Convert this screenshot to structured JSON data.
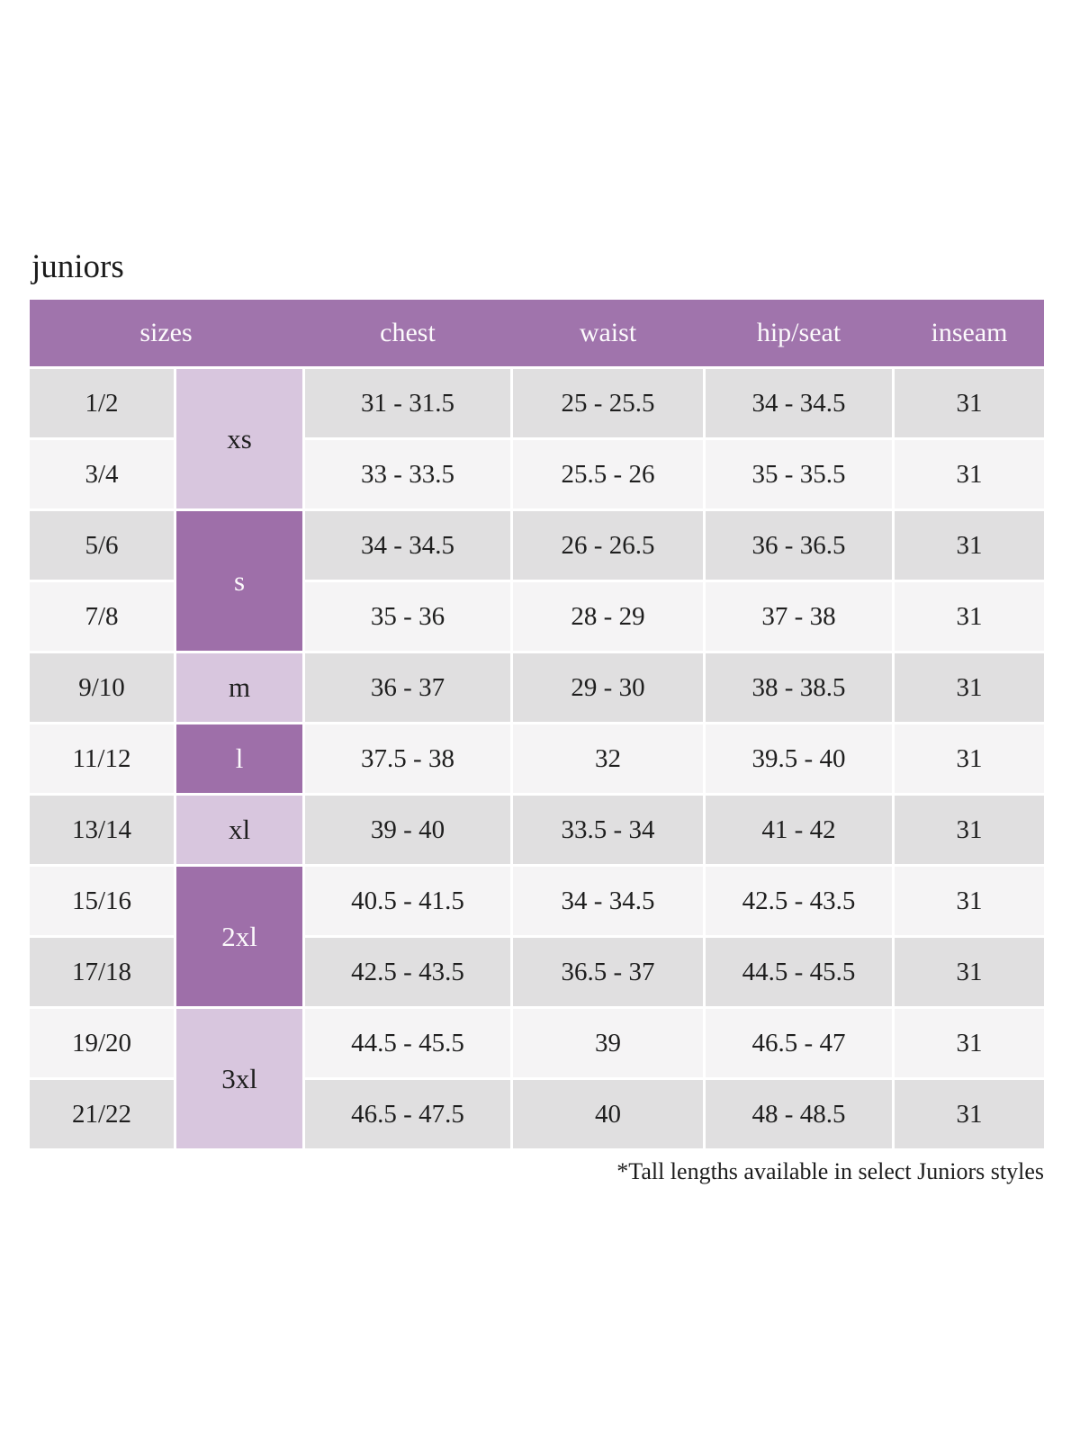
{
  "page": {
    "title": "juniors",
    "footnote": "*Tall lengths available in select Juniors styles"
  },
  "table": {
    "headers": [
      "sizes",
      "chest",
      "waist",
      "hip/seat",
      "inseam"
    ],
    "size_groups": [
      {
        "label": "xs",
        "spans_sizes": [
          "1/2",
          "3/4"
        ]
      },
      {
        "label": "s",
        "spans_sizes": [
          "5/6",
          "7/8"
        ]
      },
      {
        "label": "m",
        "spans_sizes": [
          "9/10"
        ]
      },
      {
        "label": "l",
        "spans_sizes": [
          "11/12"
        ]
      },
      {
        "label": "xl",
        "spans_sizes": [
          "13/14"
        ]
      },
      {
        "label": "2xl",
        "spans_sizes": [
          "15/16",
          "17/18"
        ]
      },
      {
        "label": "3xl",
        "spans_sizes": [
          "19/20",
          "21/22"
        ]
      }
    ],
    "rows": [
      {
        "size": "1/2",
        "chest": "31 - 31.5",
        "waist": "25 - 25.5",
        "hip_seat": "34 - 34.5",
        "inseam": "31"
      },
      {
        "size": "3/4",
        "chest": "33 - 33.5",
        "waist": "25.5 - 26",
        "hip_seat": "35 - 35.5",
        "inseam": "31"
      },
      {
        "size": "5/6",
        "chest": "34 - 34.5",
        "waist": "26 - 26.5",
        "hip_seat": "36 - 36.5",
        "inseam": "31"
      },
      {
        "size": "7/8",
        "chest": "35 - 36",
        "waist": "28 - 29",
        "hip_seat": "37 - 38",
        "inseam": "31"
      },
      {
        "size": "9/10",
        "chest": "36 - 37",
        "waist": "29 - 30",
        "hip_seat": "38 - 38.5",
        "inseam": "31"
      },
      {
        "size": "11/12",
        "chest": "37.5 - 38",
        "waist": "32",
        "hip_seat": "39.5 - 40",
        "inseam": "31"
      },
      {
        "size": "13/14",
        "chest": "39 - 40",
        "waist": "33.5 - 34",
        "hip_seat": "41 - 42",
        "inseam": "31"
      },
      {
        "size": "15/16",
        "chest": "40.5 - 41.5",
        "waist": "34 - 34.5",
        "hip_seat": "42.5 - 43.5",
        "inseam": "31"
      },
      {
        "size": "17/18",
        "chest": "42.5 - 43.5",
        "waist": "36.5 - 37",
        "hip_seat": "44.5 - 45.5",
        "inseam": "31"
      },
      {
        "size": "19/20",
        "chest": "44.5 - 45.5",
        "waist": "39",
        "hip_seat": "46.5 - 47",
        "inseam": "31"
      },
      {
        "size": "21/22",
        "chest": "46.5 - 47.5",
        "waist": "40",
        "hip_seat": "48 - 48.5",
        "inseam": "31"
      }
    ]
  },
  "colors": {
    "header_purple": "#a074ac",
    "group_dark_purple": "#9e6fa9",
    "group_light_lavender": "#d8c6de",
    "row_dark_gray": "#e0dfe0",
    "row_light_gray": "#f5f4f5",
    "header_text": "#fcfafc",
    "body_text": "#1e1e1e"
  }
}
